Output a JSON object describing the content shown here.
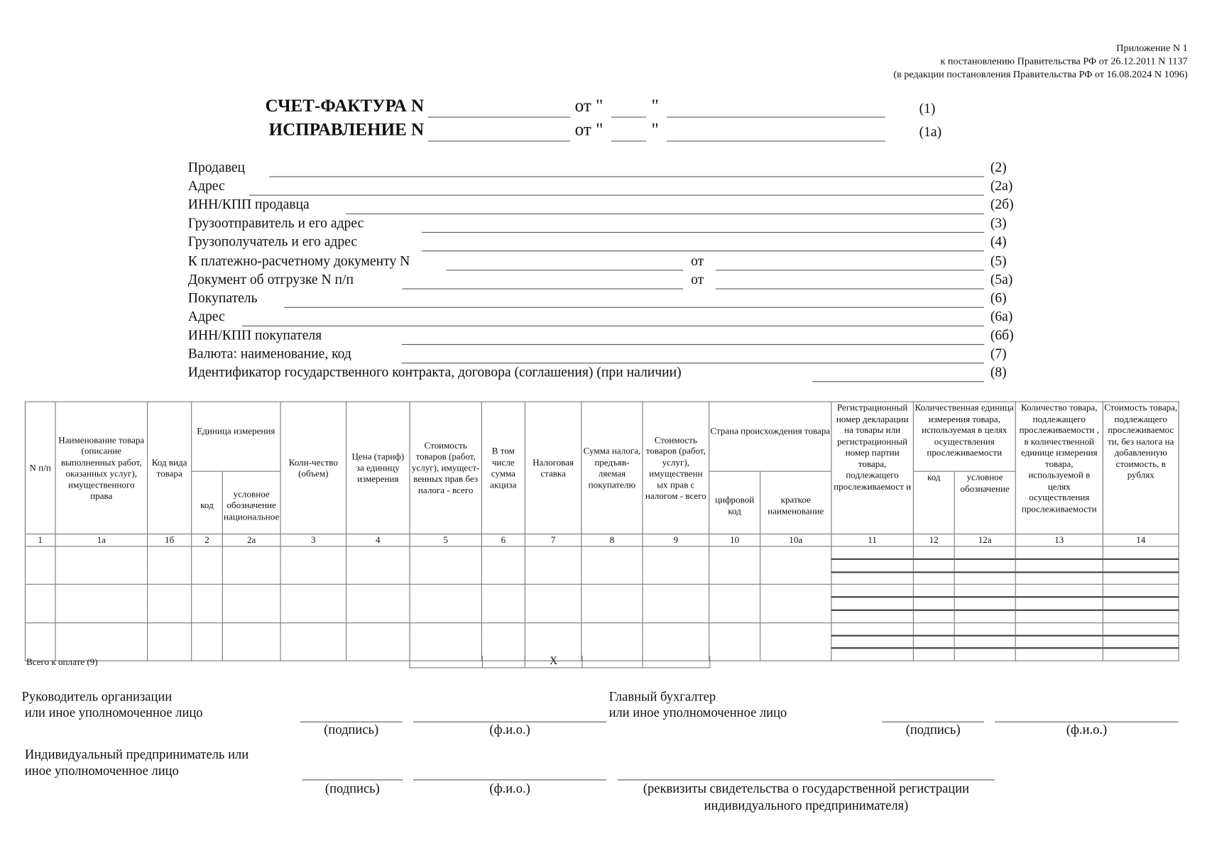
{
  "header": {
    "line1": "Приложение N 1",
    "line2": "к  постановлению Правительства РФ от 26.12.2011 N 1137",
    "line3": "(в редакции постановления Правительства РФ от 16.08.2024 N 1096)"
  },
  "title": {
    "invoice": "СЧЕТ-ФАКТУРА N",
    "correction": "ИСПРАВЛЕНИЕ N",
    "from": "от \"",
    "quote": "\"",
    "invoice_ref": "(1)",
    "correction_ref": "(1а)"
  },
  "fields": [
    {
      "label": "Продавец",
      "ref": "(2)"
    },
    {
      "label": "Адрес",
      "ref": "(2а)"
    },
    {
      "label": "ИНН/КПП продавца",
      "ref": "(2б)"
    },
    {
      "label": "Грузоотправитель и его адрес",
      "ref": "(3)"
    },
    {
      "label": "Грузополучатель и его адрес",
      "ref": "(4)"
    },
    {
      "label": "К платежно-расчетному документу N",
      "ref": "(5)",
      "mid": "от"
    },
    {
      "label": "Документ об отгрузке N п/п",
      "ref": "(5а)",
      "mid": "от"
    },
    {
      "label": "Покупатель",
      "ref": "(6)"
    },
    {
      "label": "Адрес",
      "ref": "(6а)"
    },
    {
      "label": "ИНН/КПП покупателя",
      "ref": "(6б)"
    },
    {
      "label": "Валюта: наименование, код",
      "ref": "(7)"
    },
    {
      "label": "Идентификатор государственного контракта, договора (соглашения) (при наличии)",
      "ref": "(8)"
    }
  ],
  "table": {
    "h": {
      "n": "N п/п",
      "name": "Наименование товара (описание выполненных работ, оказанных услуг), имущественного права",
      "kind": "Код вида товара",
      "unit": "Единица измерения",
      "unit_code": "код",
      "unit_nat": "условное обозначение национальное",
      "qty": "Коли-чество (объем)",
      "price": "Цена (тариф) за единицу измерения",
      "cost": "Стоимость товаров (работ, услуг), имущест-венных прав без налога - всего",
      "excise": "В том числе сумма акциза",
      "rate": "Налоговая ставка",
      "tax": "Сумма налога, предъяв-ляемая покупателю",
      "total": "Стоимость товаров (работ, услуг), имущественн ых прав с налогом - всего",
      "country": "Страна происхождения товара",
      "country_code": "цифровой код",
      "country_name": "краткое наименование",
      "reg": "Регистрационный номер декларации на товары или регистрационный номер партии товара, подлежащего прослеживаемост и",
      "tunit": "Количественная единица измерения товара, используемая в целях осуществления прослеживаемости",
      "tunit_code": "код",
      "tunit_name": "условное обозначение",
      "tqty": "Количество товара, подлежащего прослеживаемости , в количественной единице измерения товара, используемой в целях осуществления прослеживаемости",
      "tcost": "Стоимость товара, подлежащего прослеживаемос ти, без налога на добавленную стоимость, в рублях"
    },
    "col_numbers": [
      "1",
      "1а",
      "1б",
      "2",
      "2а",
      "3",
      "4",
      "5",
      "6",
      "7",
      "8",
      "9",
      "10",
      "10а",
      "11",
      "12",
      "12а",
      "13",
      "14"
    ],
    "total_label": "Всего к оплате (9)",
    "total_x": "Х"
  },
  "signatures": {
    "head_l1": "Руководитель организации",
    "head_l2": "или иное уполномоченное лицо",
    "acc_l1": "Главный бухгалтер",
    "acc_l2": "или иное уполномоченное лицо",
    "ip_l1": "Индивидуальный предприниматель или",
    "ip_l2": "иное уполномоченное лицо",
    "sign": "(подпись)",
    "fio": "(ф.и.о.)",
    "reg_l1": "(реквизиты свидетельства о государственной регистрации",
    "reg_l2": "индивидуального предпринимателя)"
  }
}
